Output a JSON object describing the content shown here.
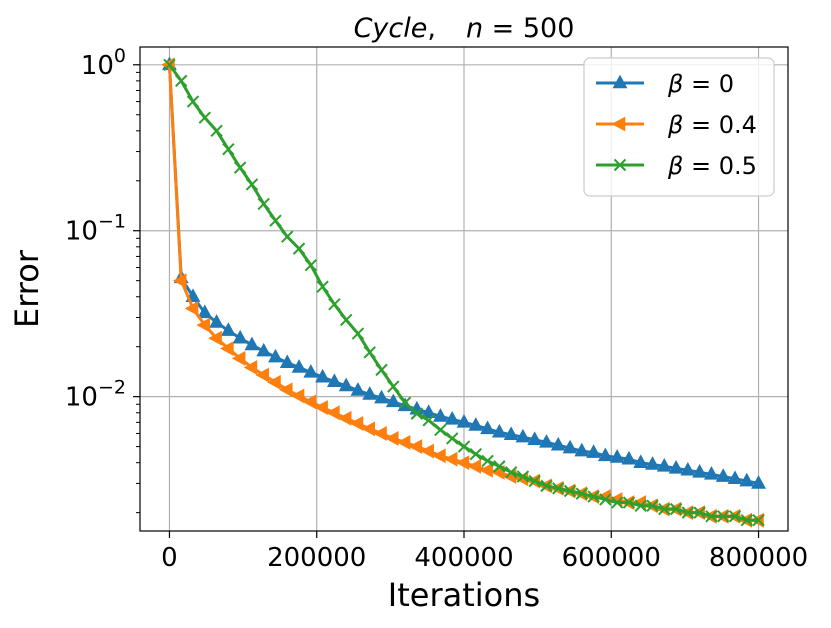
{
  "chart_data": {
    "type": "line",
    "title": "Cycle,    n = 500",
    "title_parts": [
      "Cycle",
      ",",
      "n",
      " = 500"
    ],
    "xlabel": "Iterations",
    "ylabel": "Error",
    "yscale": "log",
    "xlim": [
      -40000,
      840000
    ],
    "ylim": [
      0.00155,
      1.28
    ],
    "grid": true,
    "x_ticks": [
      0,
      200000,
      400000,
      600000,
      800000
    ],
    "x_tick_labels": [
      "0",
      "200000",
      "400000",
      "600000",
      "800000"
    ],
    "y_ticks": [
      1,
      0.1,
      0.01
    ],
    "y_tick_labels": [
      {
        "base": "10",
        "exp": "0"
      },
      {
        "base": "10",
        "exp": "−1"
      },
      {
        "base": "10",
        "exp": "−2"
      }
    ],
    "legend_position": "top-right",
    "series": [
      {
        "name": "β = 0",
        "label_symbol": "β",
        "label_value": " = 0",
        "color": "#1f77b4",
        "marker": "triangle-up",
        "x": [
          0,
          16000,
          32000,
          48000,
          64000,
          80000,
          96000,
          112000,
          128000,
          144000,
          160000,
          176000,
          192000,
          208000,
          224000,
          240000,
          256000,
          272000,
          288000,
          304000,
          320000,
          336000,
          352000,
          368000,
          384000,
          400000,
          416000,
          432000,
          448000,
          464000,
          480000,
          496000,
          512000,
          528000,
          544000,
          560000,
          576000,
          592000,
          608000,
          624000,
          640000,
          656000,
          672000,
          688000,
          704000,
          720000,
          736000,
          752000,
          768000,
          784000,
          800000
        ],
        "values": [
          1.0,
          0.052,
          0.04,
          0.032,
          0.028,
          0.025,
          0.0225,
          0.0205,
          0.0188,
          0.0173,
          0.016,
          0.015,
          0.014,
          0.0131,
          0.0123,
          0.0116,
          0.0109,
          0.0103,
          0.0098,
          0.0093,
          0.0088,
          0.0084,
          0.008,
          0.0076,
          0.0073,
          0.007,
          0.0067,
          0.0064,
          0.0061,
          0.0059,
          0.0057,
          0.0055,
          0.0053,
          0.0051,
          0.0049,
          0.0047,
          0.0046,
          0.0044,
          0.0043,
          0.0042,
          0.004,
          0.0039,
          0.0038,
          0.0037,
          0.0036,
          0.0035,
          0.0034,
          0.0033,
          0.0032,
          0.0031,
          0.003
        ]
      },
      {
        "name": "β = 0.4",
        "label_symbol": "β",
        "label_value": " = 0.4",
        "color": "#ff7f0e",
        "marker": "triangle-left",
        "x": [
          0,
          16000,
          32000,
          48000,
          64000,
          80000,
          96000,
          112000,
          128000,
          144000,
          160000,
          176000,
          192000,
          208000,
          224000,
          240000,
          256000,
          272000,
          288000,
          304000,
          320000,
          336000,
          352000,
          368000,
          384000,
          400000,
          416000,
          432000,
          448000,
          464000,
          480000,
          496000,
          512000,
          528000,
          544000,
          560000,
          576000,
          592000,
          608000,
          624000,
          640000,
          656000,
          672000,
          688000,
          704000,
          720000,
          736000,
          752000,
          768000,
          784000,
          800000
        ],
        "values": [
          1.0,
          0.05,
          0.034,
          0.027,
          0.0225,
          0.0195,
          0.017,
          0.015,
          0.0135,
          0.0122,
          0.011,
          0.0101,
          0.0093,
          0.0086,
          0.008,
          0.0074,
          0.0069,
          0.0064,
          0.006,
          0.0056,
          0.0053,
          0.005,
          0.0047,
          0.0044,
          0.0042,
          0.004,
          0.0038,
          0.0036,
          0.0035,
          0.0033,
          0.0032,
          0.0031,
          0.0029,
          0.0028,
          0.0027,
          0.0026,
          0.0025,
          0.0025,
          0.0024,
          0.0023,
          0.0023,
          0.0022,
          0.0021,
          0.0021,
          0.002,
          0.002,
          0.0019,
          0.0019,
          0.0019,
          0.0018,
          0.0018
        ]
      },
      {
        "name": "β = 0.5",
        "label_symbol": "β",
        "label_value": " = 0.5",
        "color": "#2ca02c",
        "marker": "x",
        "x": [
          0,
          16000,
          32000,
          48000,
          64000,
          80000,
          96000,
          112000,
          128000,
          144000,
          160000,
          176000,
          192000,
          208000,
          224000,
          240000,
          256000,
          272000,
          288000,
          304000,
          320000,
          336000,
          352000,
          368000,
          384000,
          400000,
          416000,
          432000,
          448000,
          464000,
          480000,
          496000,
          512000,
          528000,
          544000,
          560000,
          576000,
          592000,
          608000,
          624000,
          640000,
          656000,
          672000,
          688000,
          704000,
          720000,
          736000,
          752000,
          768000,
          784000,
          800000
        ],
        "values": [
          1.0,
          0.8,
          0.6,
          0.48,
          0.4,
          0.31,
          0.24,
          0.19,
          0.145,
          0.115,
          0.092,
          0.078,
          0.062,
          0.046,
          0.036,
          0.029,
          0.024,
          0.0185,
          0.0145,
          0.0115,
          0.0092,
          0.0079,
          0.0072,
          0.0063,
          0.0056,
          0.005,
          0.0045,
          0.0041,
          0.0038,
          0.0035,
          0.0033,
          0.0031,
          0.0029,
          0.0028,
          0.0027,
          0.0026,
          0.0025,
          0.0024,
          0.0023,
          0.0023,
          0.0022,
          0.0022,
          0.0021,
          0.0021,
          0.002,
          0.002,
          0.0019,
          0.0019,
          0.0019,
          0.0018,
          0.0018
        ]
      }
    ]
  }
}
